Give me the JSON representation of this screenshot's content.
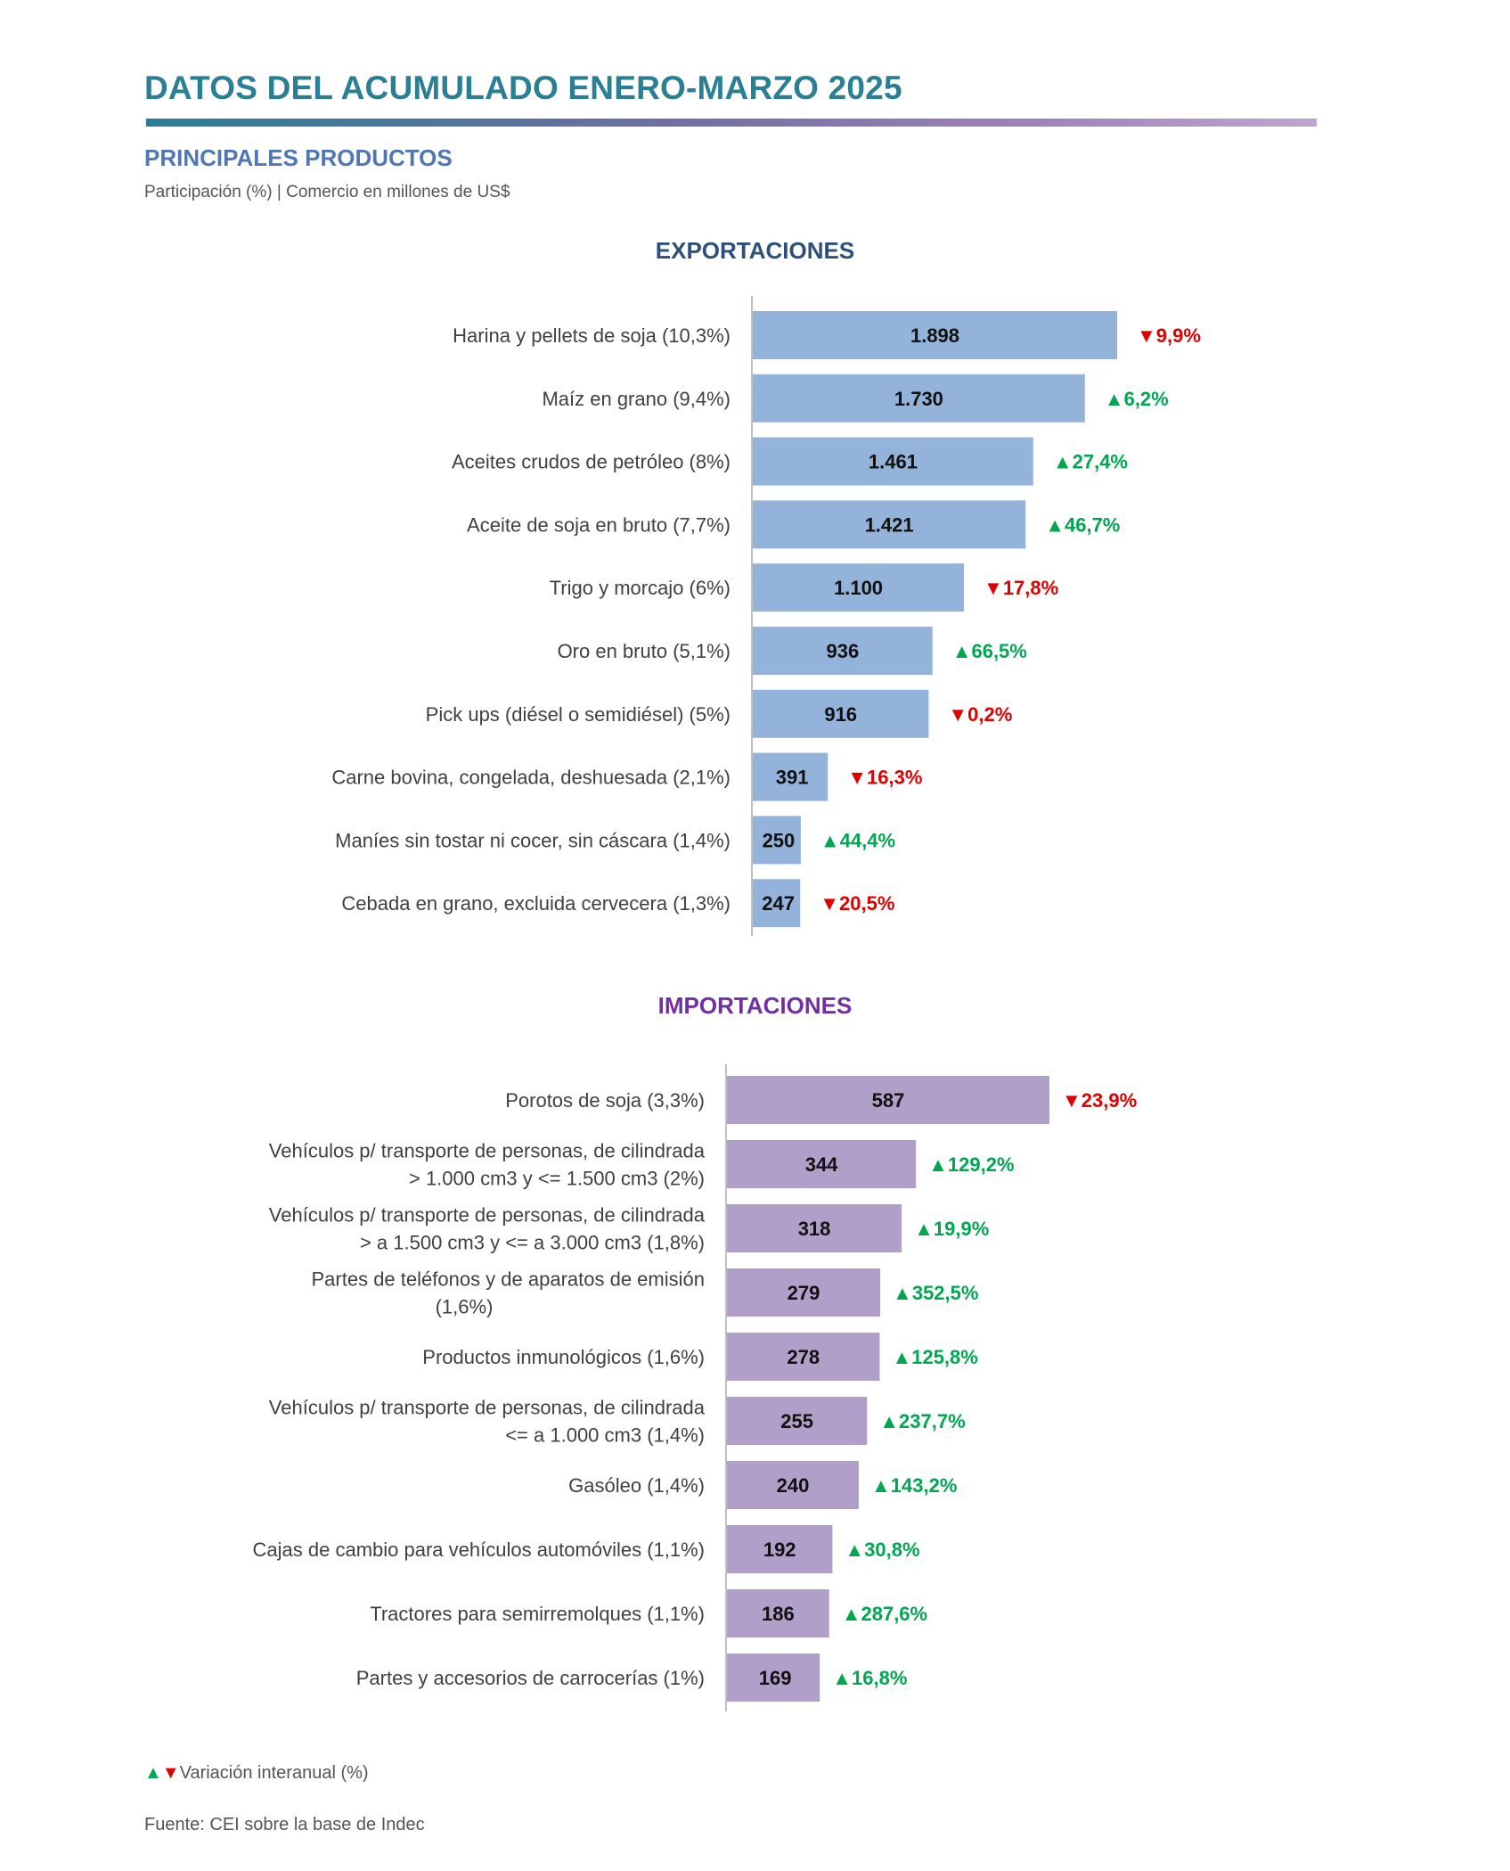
{
  "header": {
    "title": "DATOS DEL ACUMULADO ENERO-MARZO 2025",
    "subtitle": "PRINCIPALES PRODUCTOS",
    "units": "Participación (%) | Comercio en millones de US$"
  },
  "colors": {
    "export_bar": "#94b3da",
    "import_bar": "#b09fc8",
    "up": "#00a650",
    "down": "#e00000",
    "export_title": "#2e4f7b",
    "import_title": "#7030a0"
  },
  "chart_data": [
    {
      "type": "bar",
      "orientation": "horizontal",
      "title": "EXPORTACIONES",
      "categories": [
        "Harina y pellets de soja  (10,3%)",
        "Maíz en grano  (9,4%)",
        "Aceites crudos de petróleo (8%)",
        "Aceite de soja en bruto  (7,7%)",
        "Trigo y morcajo  (6%)",
        "Oro en bruto  (5,1%)",
        "Pick ups (diésel o semidiésel)  (5%)",
        "Carne bovina, congelada, deshuesada (2,1%)",
        "Maníes sin tostar ni cocer, sin cáscara  (1,4%)",
        "Cebada en grano, excluida cervecera (1,3%)"
      ],
      "values": [
        1898,
        1730,
        1461,
        1421,
        1100,
        936,
        916,
        391,
        250,
        247
      ],
      "value_labels": [
        "1.898",
        "1.730",
        "1.461",
        "1.421",
        "1.100",
        "936",
        "916",
        "391",
        "250",
        "247"
      ],
      "variation": [
        "9,9%",
        "6,2%",
        "27,4%",
        "46,7%",
        "17,8%",
        "66,5%",
        "0,2%",
        "16,3%",
        "44,4%",
        "20,5%"
      ],
      "direction": [
        "down",
        "up",
        "up",
        "up",
        "down",
        "up",
        "down",
        "down",
        "up",
        "down"
      ],
      "xlim": [
        0,
        1898
      ]
    },
    {
      "type": "bar",
      "orientation": "horizontal",
      "title": "IMPORTACIONES",
      "categories": [
        [
          "Porotos de soja  (3,3%)"
        ],
        [
          "Vehículos p/ transporte de personas, de cilindrada",
          "> 1.000 cm3 y <= 1.500 cm3  (2%)"
        ],
        [
          "Vehículos p/ transporte de personas, de cilindrada",
          "> a 1.500 cm3 y <= a 3.000 cm3  (1,8%)"
        ],
        [
          "Partes de teléfonos y de aparatos de emisión",
          "(1,6%)"
        ],
        [
          "Productos inmunológicos (1,6%)"
        ],
        [
          "Vehículos p/ transporte de personas, de cilindrada",
          "<= a 1.000 cm3 (1,4%)"
        ],
        [
          "Gasóleo  (1,4%)"
        ],
        [
          "Cajas de cambio para vehículos automóviles  (1,1%)"
        ],
        [
          "Tractores para semirremolques (1,1%)"
        ],
        [
          "Partes y accesorios de carrocerías (1%)"
        ]
      ],
      "values": [
        587,
        344,
        318,
        279,
        278,
        255,
        240,
        192,
        186,
        169
      ],
      "value_labels": [
        "587",
        "344",
        "318",
        "279",
        "278",
        "255",
        "240",
        "192",
        "186",
        "169"
      ],
      "variation": [
        "23,9%",
        "129,2%",
        "19,9%",
        "352,5%",
        "125,8%",
        "237,7%",
        "143,2%",
        "30,8%",
        "287,6%",
        "16,8%"
      ],
      "direction": [
        "down",
        "up",
        "up",
        "up",
        "up",
        "up",
        "up",
        "up",
        "up",
        "up"
      ],
      "xlim": [
        0,
        587
      ]
    }
  ],
  "legend": {
    "up_symbol": "▲",
    "down_symbol": "▼",
    "text": "Variación interanual (%)"
  },
  "footer": {
    "source": "Fuente: CEI sobre la base de Indec"
  }
}
